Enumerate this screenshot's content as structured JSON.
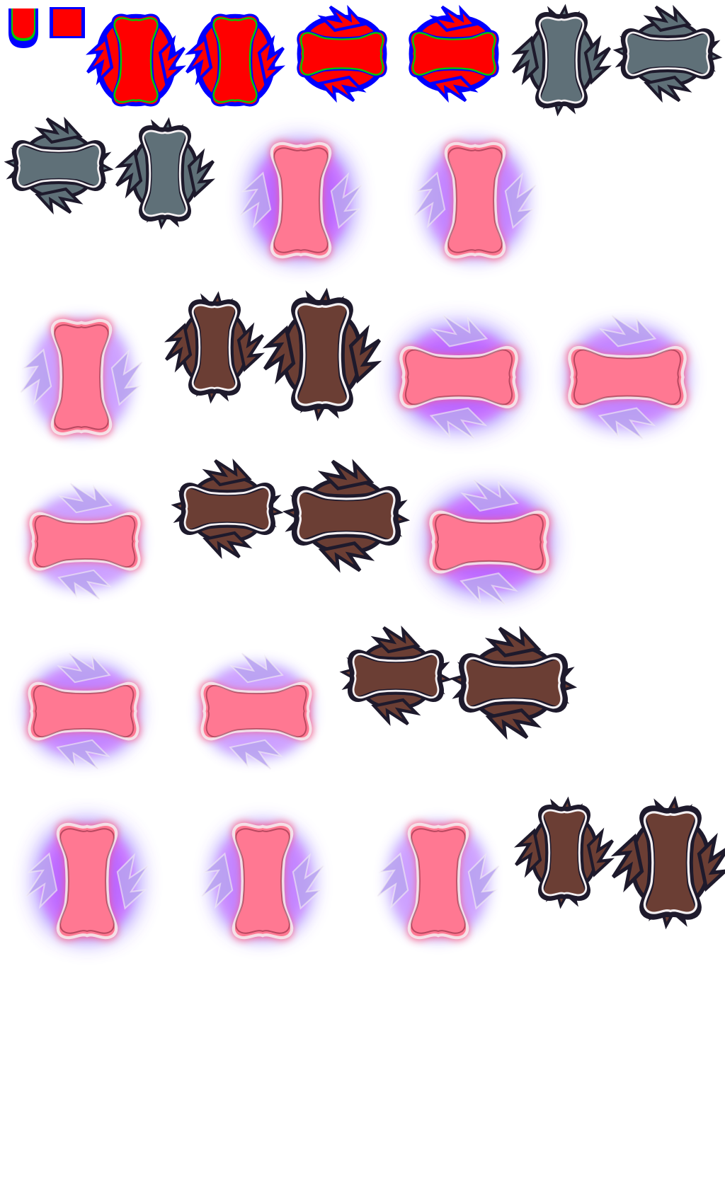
{
  "sheet": {
    "background": "#ffffff",
    "palette": {
      "mask_red": "#ff0000",
      "mask_blue": "#0000ff",
      "mask_green": "#00cc00",
      "stone_fill": "#5f7078",
      "wood_fill": "#6b3e34",
      "glow_core": "#ff5a78",
      "glow_aura": "#6a3cff",
      "glow_magenta": "#ff4cff",
      "outline_dark": "#1e1a2c",
      "outline_light": "#f4f0f2"
    },
    "swatches": [
      {
        "name": "shield-swatch",
        "colors": [
          "#ff0000",
          "#00cc00",
          "#0000ff"
        ]
      },
      {
        "name": "square-swatch",
        "colors": [
          "#ff0000",
          "#0000ff"
        ]
      }
    ],
    "variants": [
      "mask-vertical",
      "mask-vertical",
      "mask-horizontal",
      "mask-horizontal",
      "stone-vertical",
      "stone-horizontal",
      "stone-horizontal",
      "stone-vertical",
      "glow-strong-vertical",
      "glow-mid-vertical",
      "glow-soft-vertical",
      "wood-vertical",
      "wood-vertical",
      "glow-strong-horizontal",
      "glow-mid-horizontal",
      "glow-soft-horizontal",
      "wood-horizontal",
      "wood-horizontal",
      "glow-strong-horizontal",
      "glow-mid-horizontal",
      "glow-soft-horizontal",
      "wood-horizontal",
      "wood-horizontal",
      "glow-strong-vertical",
      "glow-mid-vertical",
      "glow-soft-vertical",
      "wood-vertical",
      "wood-vertical"
    ]
  }
}
